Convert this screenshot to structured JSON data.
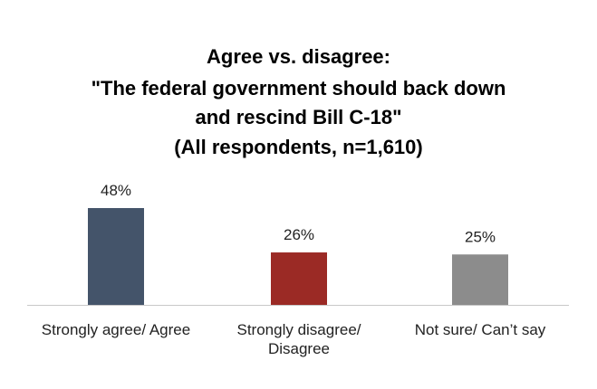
{
  "chart_data": {
    "type": "bar",
    "title": [
      "Agree vs. disagree:",
      "\"The federal government should back down",
      "and rescind Bill C-18\"",
      "(All respondents, n=1,610)"
    ],
    "categories": [
      [
        "Strongly agree/ Agree"
      ],
      [
        "Strongly disagree/",
        "Disagree"
      ],
      [
        "Not sure/ Can’t say"
      ]
    ],
    "values": [
      48,
      26,
      25
    ],
    "value_labels": [
      "48%",
      "26%",
      "25%"
    ],
    "colors": [
      "#44546A",
      "#9B2A25",
      "#8C8C8C"
    ],
    "ylim": [
      0,
      48
    ],
    "grid": false,
    "legend": "none"
  }
}
